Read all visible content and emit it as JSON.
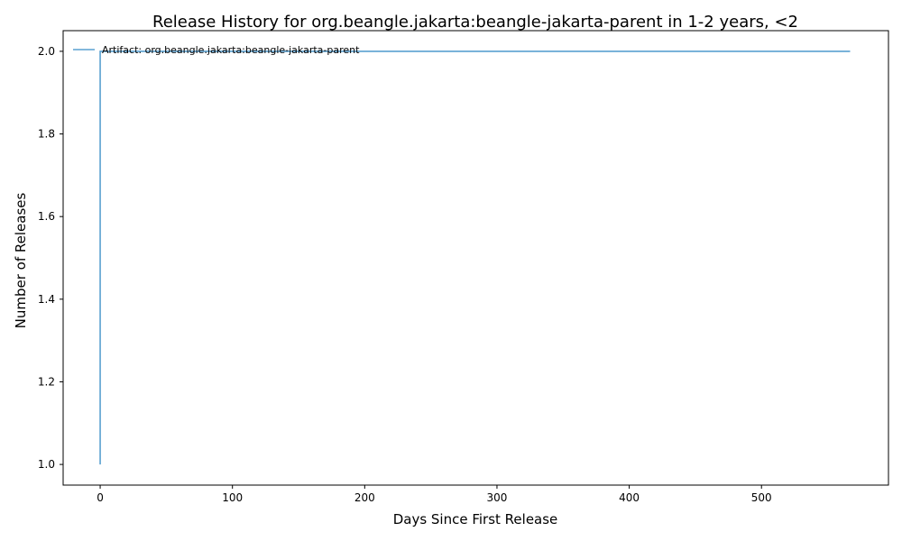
{
  "chart_data": {
    "type": "line",
    "title": "Release History for org.beangle.jakarta:beangle-jakarta-parent in 1-2 years, <2",
    "xlabel": "Days Since First Release",
    "ylabel": "Number of Releases",
    "xlim": [
      -28,
      596
    ],
    "ylim": [
      0.95,
      2.05
    ],
    "xticks": [
      0,
      100,
      200,
      300,
      400,
      500
    ],
    "yticks": [
      1.0,
      1.2,
      1.4,
      1.6,
      1.8,
      2.0
    ],
    "xtick_labels": [
      "0",
      "100",
      "200",
      "300",
      "400",
      "500"
    ],
    "ytick_labels": [
      "1.0",
      "1.2",
      "1.4",
      "1.6",
      "1.8",
      "2.0"
    ],
    "grid": false,
    "legend_position": "top-left",
    "series": [
      {
        "name": "Artifact: org.beangle.jakarta:beangle-jakarta-parent",
        "color": "#5aa0d0",
        "x": [
          0,
          0,
          567
        ],
        "y": [
          1,
          2,
          2
        ]
      }
    ]
  }
}
